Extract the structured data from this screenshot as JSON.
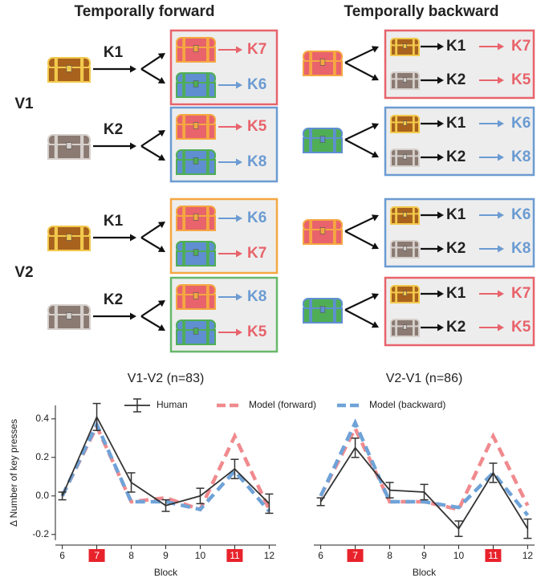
{
  "diagram": {
    "column_titles": [
      "Temporally forward",
      "Temporally backward"
    ],
    "row_labels": [
      "V1",
      "V2"
    ],
    "forward": [
      {
        "key": "K1",
        "box_color": "#e8636b",
        "source": [
          "#a8621e",
          "#f2c94c"
        ],
        "targets": [
          {
            "chest": [
              "#e8636b",
              "#f5a742"
            ],
            "outcome": "K7",
            "color": "#e8636b"
          },
          {
            "chest": [
              "#5f8fd0",
              "#4fae55"
            ],
            "outcome": "K6",
            "color": "#6b9bd2"
          }
        ]
      },
      {
        "key": "K2",
        "box_color": "#6b9bd2",
        "source": [
          "#8a7a72",
          "#d6d0cc"
        ],
        "targets": [
          {
            "chest": [
              "#e8636b",
              "#f5a742"
            ],
            "outcome": "K5",
            "color": "#e8636b"
          },
          {
            "chest": [
              "#5f8fd0",
              "#4fae55"
            ],
            "outcome": "K8",
            "color": "#6b9bd2"
          }
        ]
      },
      {
        "key": "K1",
        "box_color": "#f5a742",
        "source": [
          "#a8621e",
          "#f2c94c"
        ],
        "targets": [
          {
            "chest": [
              "#e8636b",
              "#f5a742"
            ],
            "outcome": "K6",
            "color": "#6b9bd2"
          },
          {
            "chest": [
              "#5f8fd0",
              "#4fae55"
            ],
            "outcome": "K7",
            "color": "#e8636b"
          }
        ]
      },
      {
        "key": "K2",
        "box_color": "#67b86a",
        "source": [
          "#8a7a72",
          "#d6d0cc"
        ],
        "targets": [
          {
            "chest": [
              "#e8636b",
              "#f5a742"
            ],
            "outcome": "K8",
            "color": "#6b9bd2"
          },
          {
            "chest": [
              "#5f8fd0",
              "#4fae55"
            ],
            "outcome": "K5",
            "color": "#e8636b"
          }
        ]
      }
    ],
    "backward": [
      {
        "box_color": "#e8636b",
        "source": [
          "#e8636b",
          "#f5a742"
        ],
        "rows": [
          {
            "chest": [
              "#a8621e",
              "#f2c94c"
            ],
            "key": "K1",
            "outcome": "K7",
            "color": "#e8636b"
          },
          {
            "chest": [
              "#8a7a72",
              "#d6d0cc"
            ],
            "key": "K2",
            "outcome": "K5",
            "color": "#e8636b"
          }
        ]
      },
      {
        "box_color": "#6b9bd2",
        "source": [
          "#4fae55",
          "#5f8fd0"
        ],
        "rows": [
          {
            "chest": [
              "#a8621e",
              "#f2c94c"
            ],
            "key": "K1",
            "outcome": "K6",
            "color": "#6b9bd2"
          },
          {
            "chest": [
              "#8a7a72",
              "#d6d0cc"
            ],
            "key": "K2",
            "outcome": "K8",
            "color": "#6b9bd2"
          }
        ]
      },
      {
        "box_color": "#6b9bd2",
        "source": [
          "#e8636b",
          "#f5a742"
        ],
        "rows": [
          {
            "chest": [
              "#a8621e",
              "#f2c94c"
            ],
            "key": "K1",
            "outcome": "K6",
            "color": "#6b9bd2"
          },
          {
            "chest": [
              "#8a7a72",
              "#d6d0cc"
            ],
            "key": "K2",
            "outcome": "K8",
            "color": "#6b9bd2"
          }
        ]
      },
      {
        "box_color": "#e8636b",
        "source": [
          "#4fae55",
          "#5f8fd0"
        ],
        "rows": [
          {
            "chest": [
              "#a8621e",
              "#f2c94c"
            ],
            "key": "K1",
            "outcome": "K7",
            "color": "#e8636b"
          },
          {
            "chest": [
              "#8a7a72",
              "#d6d0cc"
            ],
            "key": "K2",
            "outcome": "K5",
            "color": "#e8636b"
          }
        ]
      }
    ]
  },
  "chart_data": [
    {
      "type": "line",
      "title": "V1-V2 (n=83)",
      "xlabel": "Block",
      "ylabel": "Δ Number of key presses",
      "x": [
        6,
        7,
        8,
        9,
        10,
        11,
        12
      ],
      "xlim": [
        5.8,
        12.2
      ],
      "xticks": [
        6,
        7,
        8,
        9,
        10,
        11,
        12
      ],
      "highlighted_xticks": [
        7,
        11
      ],
      "ylim": [
        -0.23,
        0.47
      ],
      "yticks": [
        -0.2,
        {
          "value": 0,
          "label": "0.0"
        },
        0.2,
        0.4
      ],
      "legend": "top",
      "series": [
        {
          "name": "Model (forward)",
          "color": "#f08a8e",
          "dashed": true,
          "values": [
            0.0,
            0.36,
            -0.03,
            -0.01,
            -0.07,
            0.31,
            -0.07
          ]
        },
        {
          "name": "Model (backward)",
          "color": "#6fa3d8",
          "dashed": true,
          "values": [
            0.0,
            0.37,
            -0.03,
            -0.03,
            -0.07,
            0.13,
            -0.08
          ]
        },
        {
          "name": "Human",
          "color": "#333333",
          "dashed": false,
          "values": [
            0.0,
            0.41,
            0.07,
            -0.05,
            0.0,
            0.14,
            -0.04
          ],
          "errors": [
            0.02,
            0.07,
            0.05,
            0.03,
            0.04,
            0.05,
            0.05
          ]
        }
      ]
    },
    {
      "type": "line",
      "title": "V2-V1 (n=86)",
      "xlabel": "Block",
      "x": [
        6,
        7,
        8,
        9,
        10,
        11,
        12
      ],
      "xlim": [
        5.8,
        12.2
      ],
      "xticks": [
        6,
        7,
        8,
        9,
        10,
        11,
        12
      ],
      "highlighted_xticks": [
        7,
        11
      ],
      "ylim": [
        -0.23,
        0.47
      ],
      "series": [
        {
          "color": "#f08a8e",
          "dashed": true,
          "values": [
            0.0,
            0.35,
            -0.03,
            -0.03,
            -0.07,
            0.31,
            -0.05
          ]
        },
        {
          "color": "#6fa3d8",
          "dashed": true,
          "values": [
            0.0,
            0.38,
            -0.03,
            -0.03,
            -0.06,
            0.12,
            -0.1
          ]
        },
        {
          "color": "#333333",
          "dashed": false,
          "values": [
            -0.03,
            0.25,
            0.03,
            0.02,
            -0.17,
            0.12,
            -0.17
          ],
          "errors": [
            0.02,
            0.05,
            0.04,
            0.04,
            0.04,
            0.05,
            0.05
          ]
        }
      ]
    }
  ]
}
